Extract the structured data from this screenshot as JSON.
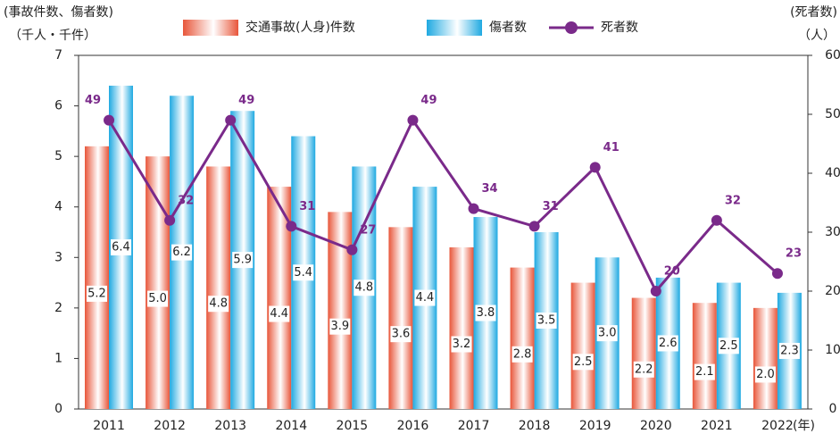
{
  "chart_data": {
    "type": "bar-line",
    "y_label": "(事故件数、傷者数)",
    "y_unit": "（千人・千件）",
    "y2_label": "(死者数)",
    "y2_unit": "（人）",
    "x_unit": "(年)",
    "categories": [
      "2011",
      "2012",
      "2013",
      "2014",
      "2015",
      "2016",
      "2017",
      "2018",
      "2019",
      "2020",
      "2021",
      "2022"
    ],
    "series": [
      {
        "name": "交通事故(人身)件数",
        "type": "bar",
        "color": "#e8563a",
        "values": [
          5.2,
          5.0,
          4.8,
          4.4,
          3.9,
          3.6,
          3.2,
          2.8,
          2.5,
          2.2,
          2.1,
          2.0
        ],
        "value_labels": [
          "5.2",
          "5.0",
          "4.8",
          "4.4",
          "3.9",
          "3.6",
          "3.2",
          "2.8",
          "2.5",
          "2.2",
          "2.1",
          "2.0"
        ]
      },
      {
        "name": "傷者数",
        "type": "bar",
        "color": "#1fa9e1",
        "values": [
          6.4,
          6.2,
          5.9,
          5.4,
          4.8,
          4.4,
          3.8,
          3.5,
          3.0,
          2.6,
          2.5,
          2.3
        ],
        "value_labels": [
          "6.4",
          "6.2",
          "5.9",
          "5.4",
          "4.8",
          "4.4",
          "3.8",
          "3.5",
          "3.0",
          "2.6",
          "2.5",
          "2.3"
        ]
      },
      {
        "name": "死者数",
        "type": "line",
        "axis": "y2",
        "color": "#7a2a8a",
        "values": [
          49,
          32,
          49,
          31,
          27,
          49,
          34,
          31,
          41,
          20,
          32,
          23
        ]
      }
    ],
    "ylim": [
      0,
      7
    ],
    "yticks": [
      0,
      1,
      2,
      3,
      4,
      5,
      6,
      7
    ],
    "y2lim": [
      0,
      60
    ],
    "y2ticks": [
      0,
      10,
      20,
      30,
      40,
      50,
      60
    ],
    "grid": false
  }
}
